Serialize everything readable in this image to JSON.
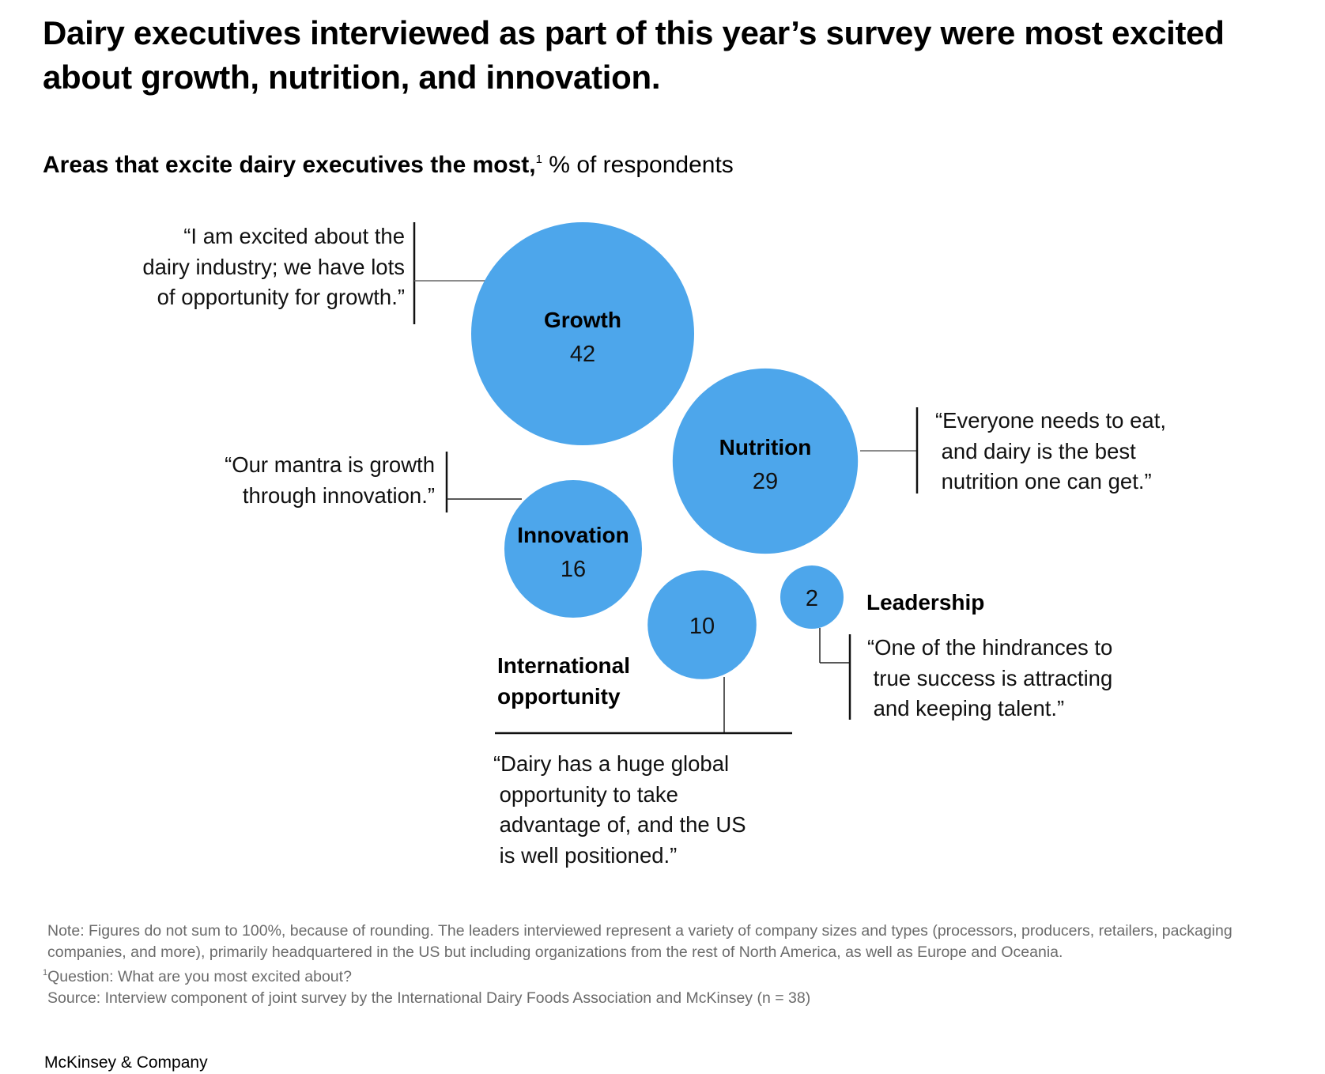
{
  "headline": "Dairy executives interviewed as part of this year’s survey were most excited about growth, nutrition, and innovation.",
  "subtitle": {
    "bold": "Areas that excite dairy executives the most,",
    "footnote_mark": "1",
    "regular": " % of respondents"
  },
  "colors": {
    "bubble": "#4da6eb",
    "text": "#000000",
    "note_text": "#6b6b6b",
    "line": "#222222"
  },
  "chart_data": {
    "type": "bubble",
    "title": "Areas that excite dairy executives the most",
    "unit": "% of respondents",
    "categories": [
      "Growth",
      "Nutrition",
      "Innovation",
      "International opportunity",
      "Leadership"
    ],
    "values": [
      42,
      29,
      16,
      10,
      2
    ],
    "bubbles": [
      {
        "name": "Growth",
        "value": 42,
        "label_inside": true,
        "quote": [
          "“I am excited about the",
          "dairy industry; we have lots",
          "of opportunity for growth.”"
        ]
      },
      {
        "name": "Nutrition",
        "value": 29,
        "label_inside": true,
        "quote": [
          "“Everyone needs to eat,",
          " and dairy is the best",
          " nutrition one can get.”"
        ]
      },
      {
        "name": "Innovation",
        "value": 16,
        "label_inside": true,
        "quote": [
          "“Our mantra is growth",
          "through innovation.”"
        ]
      },
      {
        "name": "International opportunity",
        "value": 10,
        "label_inside": false,
        "label_lines": [
          "International",
          "opportunity"
        ],
        "quote": [
          "“Dairy has a huge global",
          " opportunity to take",
          " advantage of, and the US",
          " is well positioned.”"
        ]
      },
      {
        "name": "Leadership",
        "value": 2,
        "label_inside": false,
        "label_lines": [
          "Leadership"
        ],
        "quote": [
          "“One of the hindrances to",
          " true success is attracting",
          " and keeping talent.”"
        ]
      }
    ]
  },
  "notes": {
    "note": "Note: Figures do not sum to 100%, because of rounding. The leaders interviewed represent a variety of company sizes and types (processors, producers, retailers, packaging companies, and more), primarily headquartered in the US but including organizations from the rest of North America, as well as Europe and Oceania.",
    "question_mark": "1",
    "question": "Question: What are you most excited about?",
    "source": "Source: Interview component of joint survey by the International Dairy Foods Association and McKinsey (n = 38)"
  },
  "brand": "McKinsey & Company"
}
